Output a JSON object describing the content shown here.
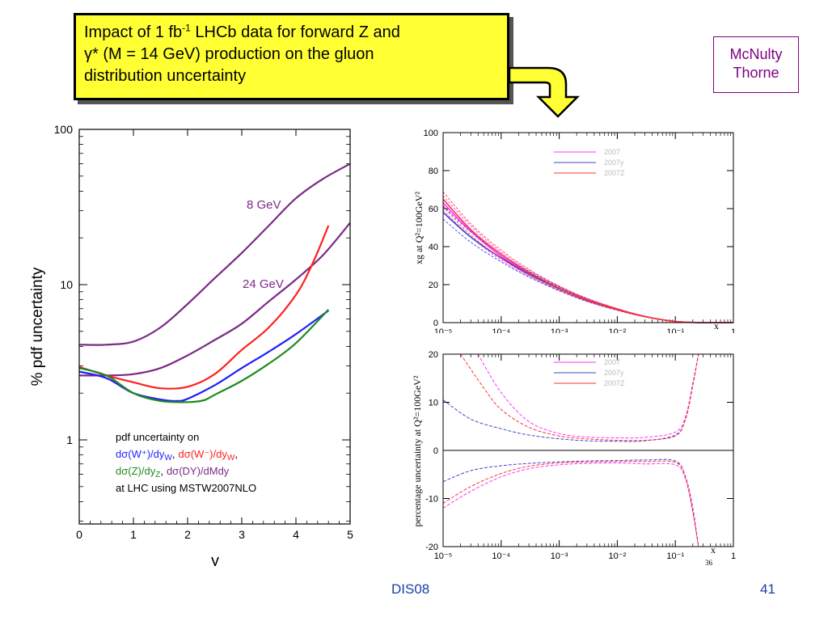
{
  "slide": {
    "title_parts": {
      "a": "Impact of 1 fb",
      "sup": "-1",
      "b": " LHCb data for forward Z and",
      "line2": "γ* (M = 14 GeV) production on the gluon",
      "line3": "distribution uncertainty"
    },
    "authors": [
      "McNulty",
      "Thorne"
    ],
    "footer": {
      "center": "DIS08",
      "page": "41"
    },
    "colors": {
      "title_bg": "#ffff33",
      "author": "#800080",
      "footer": "#1a3ea8"
    },
    "icons": [
      "down-arrow-icon"
    ]
  },
  "chart_data": [
    {
      "type": "line",
      "xlabel": "y",
      "ylabel": "% pdf uncertainty",
      "xlim": [
        0,
        5
      ],
      "ylim": [
        0.3,
        100
      ],
      "yscale": "log",
      "x_ticks": [
        "0",
        "1",
        "2",
        "3",
        "4",
        "5"
      ],
      "y_ticks": [
        "1",
        "10",
        "100"
      ],
      "series": [
        {
          "name": "8 GeV",
          "color": "#7b2a86",
          "x": [
            0,
            0.5,
            1,
            1.5,
            2,
            2.5,
            3,
            3.5,
            4,
            4.5,
            5
          ],
          "y": [
            4.1,
            4.1,
            4.3,
            5.3,
            7.5,
            11,
            16,
            24,
            36,
            48,
            60
          ]
        },
        {
          "name": "24 GeV",
          "color": "#7b2a86",
          "x": [
            0,
            0.5,
            1,
            1.5,
            2,
            2.5,
            3,
            3.5,
            4,
            4.5,
            5
          ],
          "y": [
            2.6,
            2.6,
            2.65,
            2.9,
            3.5,
            4.4,
            5.6,
            7.8,
            10.8,
            15.5,
            25
          ]
        },
        {
          "name": "dσ(W+)/dyW",
          "color": "#1f1fff",
          "x": [
            0,
            0.5,
            1,
            1.5,
            1.8,
            2,
            2.5,
            3,
            3.5,
            4,
            4.6
          ],
          "y": [
            2.75,
            2.5,
            2.0,
            1.82,
            1.78,
            1.84,
            2.25,
            2.9,
            3.7,
            4.8,
            6.8
          ]
        },
        {
          "name": "dσ(W-)/dyW",
          "color": "#ff2020",
          "x": [
            0,
            0.5,
            1,
            1.5,
            2,
            2.5,
            3,
            3.5,
            4,
            4.3,
            4.6
          ],
          "y": [
            2.95,
            2.6,
            2.35,
            2.15,
            2.2,
            2.65,
            3.8,
            5.3,
            8.6,
            13.5,
            24
          ]
        },
        {
          "name": "dσ(Z)/dyZ",
          "color": "#1f8a1f",
          "x": [
            0,
            0.5,
            1,
            1.5,
            2,
            2.3,
            2.5,
            3,
            3.5,
            4,
            4.6
          ],
          "y": [
            2.9,
            2.6,
            2.0,
            1.78,
            1.75,
            1.8,
            1.95,
            2.4,
            3.1,
            4.2,
            6.9
          ]
        }
      ],
      "annotations": {
        "label_8gev": "8 GeV",
        "label_24gev": "24 GeV",
        "legend_line1": "pdf uncertainty on",
        "legend_w_plus": "dσ(W⁺)/dy",
        "legend_w_plus_sub": "W",
        "legend_sep1": ",",
        "legend_w_minus": "dσ(W⁻)/dy",
        "legend_w_minus_sub": "W",
        "legend_sep2": ",",
        "legend_z": "dσ(Z)/dy",
        "legend_z_sub": "Z",
        "legend_sep3": ",",
        "legend_dy": "dσ(DY)/dMdy",
        "legend_line4": "at LHC using MSTW2007NLO"
      }
    },
    {
      "type": "line",
      "xlabel": "x",
      "ylabel": "xg at Q²=100GeV²",
      "xscale": "log",
      "xlim": [
        1e-05,
        1
      ],
      "ylim": [
        0,
        100
      ],
      "x_ticks": [
        "10⁻⁵",
        "10⁻⁴",
        "10⁻³",
        "10⁻²",
        "10⁻¹",
        "1"
      ],
      "y_ticks": [
        "0",
        "20",
        "40",
        "60",
        "80",
        "100"
      ],
      "legend": [
        "2007",
        "2007y",
        "2007Z"
      ],
      "series": [
        {
          "name": "2007",
          "color": "#ff33ff",
          "x": [
            1e-05,
            3e-05,
            0.0001,
            0.0003,
            0.001,
            0.003,
            0.01,
            0.03,
            0.1,
            0.3,
            1
          ],
          "y": [
            63,
            48,
            35,
            26,
            18,
            12,
            7,
            3.2,
            0.6,
            0,
            0
          ]
        },
        {
          "name": "2007y",
          "color": "#4444cc",
          "x": [
            1e-05,
            3e-05,
            0.0001,
            0.0003,
            0.001,
            0.003,
            0.01,
            0.03,
            0.1,
            0.3,
            1
          ],
          "y": [
            58,
            45,
            34,
            25.5,
            17.8,
            11.8,
            6.9,
            3.2,
            0.6,
            0,
            0
          ]
        },
        {
          "name": "2007Z",
          "color": "#ff3333",
          "x": [
            1e-05,
            3e-05,
            0.0001,
            0.0003,
            0.001,
            0.003,
            0.01,
            0.03,
            0.1,
            0.3,
            1
          ],
          "y": [
            65,
            49,
            36,
            26.5,
            18.2,
            12.1,
            7,
            3.2,
            0.6,
            0,
            0
          ]
        }
      ]
    },
    {
      "type": "line",
      "xlabel": "x",
      "ylabel": "percentage uncertainty at Q²=100GeV²",
      "xscale": "log",
      "xlim": [
        1e-05,
        1
      ],
      "ylim": [
        -20,
        20
      ],
      "x_ticks": [
        "10⁻⁵",
        "10⁻⁴",
        "10⁻³",
        "10⁻²",
        "10⁻¹",
        "1"
      ],
      "y_ticks": [
        "-20",
        "-10",
        "0",
        "10",
        "20"
      ],
      "legend": [
        "2007",
        "2007y",
        "2007Z"
      ],
      "annotation": "36",
      "series": [
        {
          "name": "2007 upper",
          "color": "#ff33ff",
          "x": [
            4e-05,
            0.0001,
            0.0003,
            0.001,
            0.003,
            0.01,
            0.03,
            0.1,
            0.15,
            0.2,
            0.25
          ],
          "y": [
            20,
            12,
            6,
            3.5,
            2.8,
            2.6,
            2.7,
            3.8,
            7,
            14,
            20
          ]
        },
        {
          "name": "2007 lower",
          "color": "#ff33ff",
          "x": [
            1e-05,
            3e-05,
            0.0001,
            0.0003,
            0.001,
            0.003,
            0.01,
            0.03,
            0.1,
            0.15,
            0.2,
            0.25
          ],
          "y": [
            -12,
            -8.5,
            -5.5,
            -3.8,
            -3.0,
            -2.7,
            -2.6,
            -2.8,
            -3.0,
            -6,
            -13,
            -20
          ]
        },
        {
          "name": "2007y upper",
          "color": "#4444cc",
          "x": [
            1e-05,
            3e-05,
            0.0001,
            0.0003,
            0.001,
            0.003,
            0.01,
            0.03,
            0.1,
            0.15,
            0.2,
            0.25
          ],
          "y": [
            10.5,
            6.5,
            4.5,
            3.2,
            2.4,
            2.0,
            1.9,
            2.0,
            3.2,
            6.5,
            13.5,
            20
          ]
        },
        {
          "name": "2007y lower",
          "color": "#4444cc",
          "x": [
            1e-05,
            3e-05,
            0.0001,
            0.0003,
            0.001,
            0.003,
            0.01,
            0.03,
            0.1,
            0.15,
            0.2,
            0.25
          ],
          "y": [
            -6.5,
            -4.2,
            -3.2,
            -2.7,
            -2.4,
            -2.2,
            -2.1,
            -2.0,
            -2.2,
            -5.5,
            -12,
            -20
          ]
        },
        {
          "name": "2007Z upper",
          "color": "#ff3333",
          "x": [
            2e-05,
            5e-05,
            0.0001,
            0.0003,
            0.001,
            0.003,
            0.01,
            0.03,
            0.1,
            0.15,
            0.2,
            0.25
          ],
          "y": [
            20,
            13,
            8.5,
            4.8,
            3.0,
            2.4,
            2.1,
            2.1,
            3.0,
            6.5,
            13.5,
            20
          ]
        },
        {
          "name": "2007Z lower",
          "color": "#ff3333",
          "x": [
            1e-05,
            3e-05,
            0.0001,
            0.0003,
            0.001,
            0.003,
            0.01,
            0.03,
            0.1,
            0.15,
            0.2,
            0.25
          ],
          "y": [
            -11,
            -7.5,
            -4.8,
            -3.3,
            -2.6,
            -2.4,
            -2.3,
            -2.3,
            -2.5,
            -5.5,
            -12.5,
            -20
          ]
        }
      ]
    }
  ]
}
